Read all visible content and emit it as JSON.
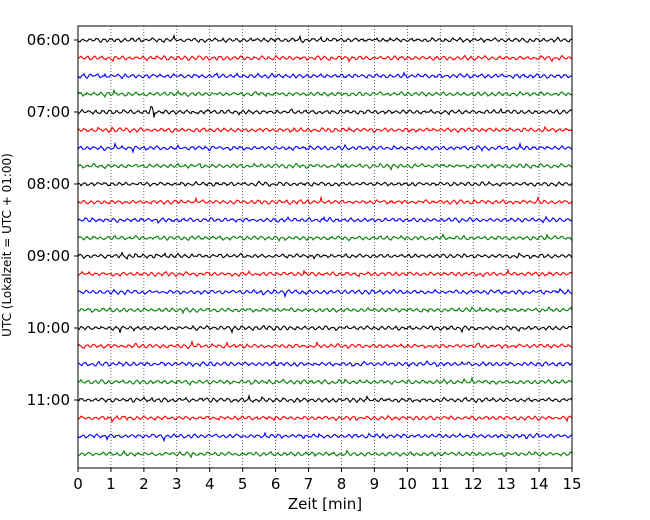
{
  "chart_data": {
    "type": "line",
    "title": "",
    "xlabel": "Zeit  [min]",
    "ylabel": "UTC (Lokalzeit = UTC + 01:00)",
    "xlim": [
      0,
      15
    ],
    "x_ticks": [
      "0",
      "1",
      "2",
      "3",
      "4",
      "5",
      "6",
      "7",
      "8",
      "9",
      "10",
      "11",
      "12",
      "13",
      "14",
      "15"
    ],
    "y_tick_labels": [
      "06:00",
      "07:00",
      "08:00",
      "09:00",
      "10:00",
      "11:00"
    ],
    "grid": "vertical dotted lines at each minute",
    "traces": {
      "start": "06:00",
      "end": "11:45",
      "interval_minutes": 15,
      "count": 24,
      "color_cycle": [
        "#000000",
        "#ff0000",
        "#0000ff",
        "#008000"
      ]
    },
    "events": [
      {
        "trace_start": "07:00",
        "x_min": 2.25,
        "description": "larger amplitude spike"
      }
    ]
  }
}
